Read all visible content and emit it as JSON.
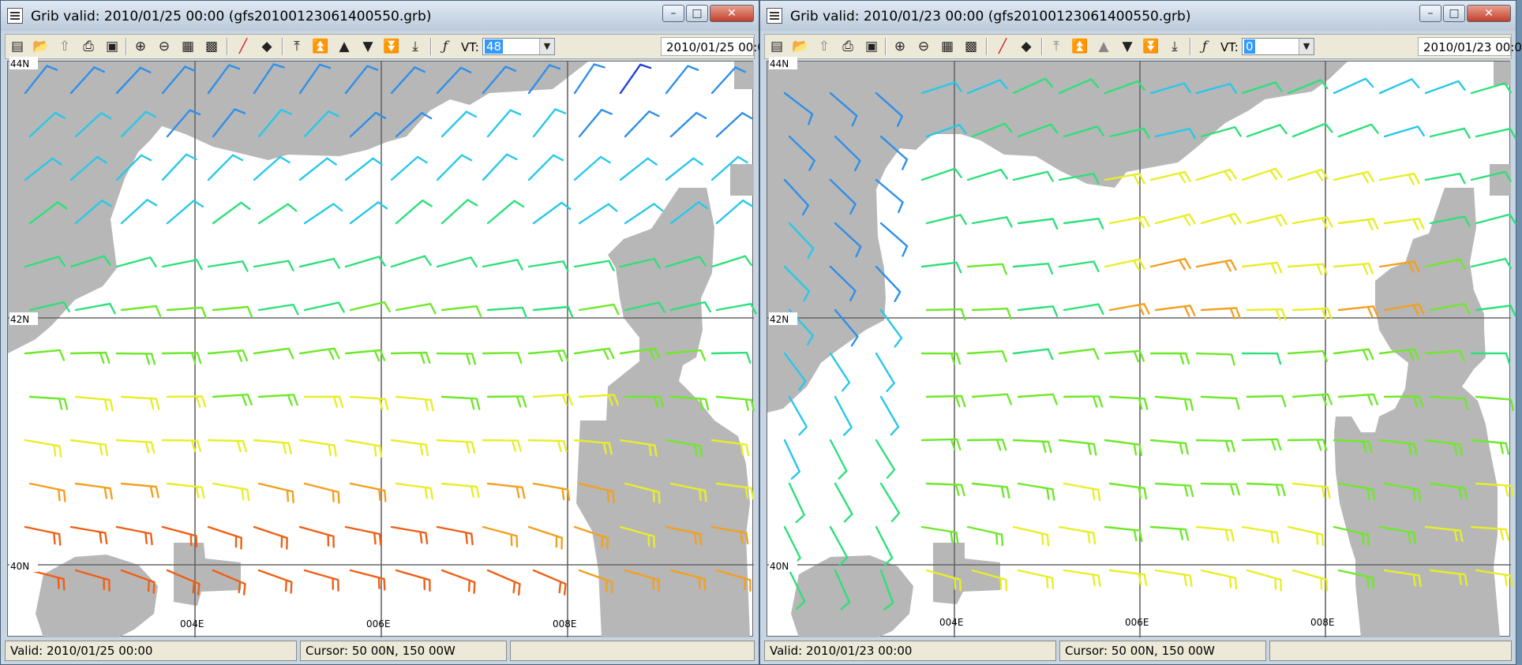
{
  "windows": [
    {
      "title": "Grib valid: 2010/01/25 00:00 (gfs20100123061400550.grb)",
      "vt_label": "VT:",
      "vt_value": "48",
      "date_box": "2010/01/25 00:0",
      "status_valid": "Valid: 2010/01/25 00:00",
      "status_cursor": "Cursor: 50 00N, 150 00W",
      "status_extra": "",
      "levels_enabled": [
        true,
        true,
        true,
        true,
        true,
        true
      ],
      "map": {
        "lat_labels": [
          "44N",
          "42N",
          "40N"
        ],
        "lon_labels": [
          "004E",
          "006E",
          "008E"
        ]
      }
    },
    {
      "title": "Grib valid: 2010/01/23 00:00 (gfs20100123061400550.grb)",
      "vt_label": "VT:",
      "vt_value": "0",
      "date_box": "2010/01/23 00:0",
      "status_valid": "Valid: 2010/01/23 00:00",
      "status_cursor": "Cursor: 50 00N, 150 00W",
      "status_extra": "",
      "levels_enabled": [
        false,
        false,
        false,
        true,
        true,
        true
      ],
      "map": {
        "lat_labels": [
          "44N",
          "42N",
          "40N"
        ],
        "lon_labels": [
          "004E",
          "006E",
          "008E"
        ]
      }
    }
  ],
  "colors": {
    "land": "#b7b7b7",
    "sea": "#ffffff",
    "grid": "#666666",
    "title_bar": "#c8d6e4",
    "selection": "#3399ff",
    "wind_scale": [
      "#1f3fd8",
      "#2f8fe8",
      "#28c8e8",
      "#2ee07a",
      "#6ee82a",
      "#e8ee28",
      "#f2a020",
      "#ee6016"
    ]
  },
  "icons": [
    "grib-file-icon",
    "open-icon",
    "upload-icon",
    "print-icon",
    "delete-icon",
    "zoom-in-icon",
    "zoom-out-icon",
    "zoom-box-icon",
    "zoom-reset-icon",
    "draw-line-icon",
    "point-icon",
    "top-level-icon",
    "up-two-levels-icon",
    "up-one-level-icon",
    "down-one-level-icon",
    "down-two-levels-icon",
    "bottom-level-icon",
    "font-icon",
    "window-minimize-icon",
    "window-restore-icon",
    "window-close-icon",
    "dropdown-arrow-icon"
  ]
}
